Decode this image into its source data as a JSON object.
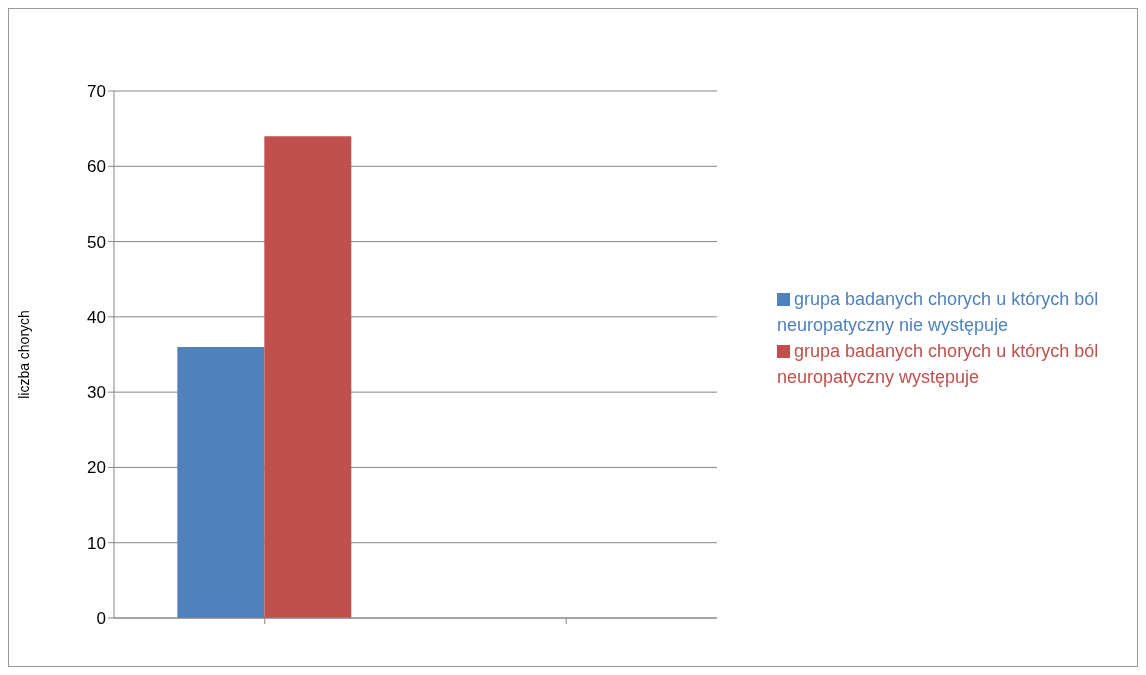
{
  "chart_data": {
    "type": "bar",
    "ylabel": "liczba chorych",
    "categories": [
      null,
      null
    ],
    "series": [
      {
        "name": "grupa badanych chorych u których ból neuropatyczny nie występuje",
        "color": "#4f81bd",
        "values": [
          36,
          null
        ]
      },
      {
        "name": "grupa badanych chorych u których ból neuropatyczny występuje",
        "color": "#c0504d",
        "values": [
          64,
          null
        ]
      }
    ],
    "ylim": [
      0,
      70
    ],
    "yticks": [
      0,
      10,
      20,
      30,
      40,
      50,
      60,
      70
    ],
    "grid": "y",
    "legend": "right"
  }
}
